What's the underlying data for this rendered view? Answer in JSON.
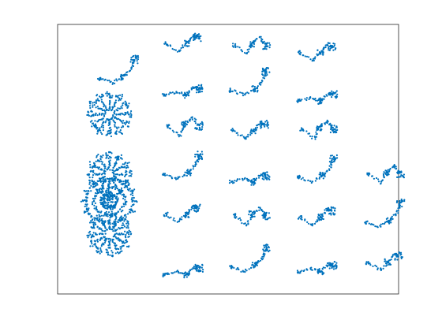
{
  "chart_data": {
    "type": "scatter",
    "title": "",
    "xlabel": "",
    "ylabel": "",
    "axis_ticks": "none",
    "grid": false,
    "legend": "none",
    "marker_color": "#0072BD",
    "frame_color": "#262626",
    "groups": [
      {
        "shape": "ring",
        "x": 1,
        "y": 6,
        "r": 0.8,
        "arms": 12
      },
      {
        "shape": "ring",
        "x": 1,
        "y": 4,
        "r": 0.8,
        "arms": 12
      },
      {
        "shape": "ring",
        "x": 1,
        "y": 2,
        "r": 0.8,
        "arms": 12
      },
      {
        "shape": "dense",
        "x": 1,
        "y": 3.1
      },
      {
        "shape": "branch",
        "x": 1.15,
        "y": 7.2
      },
      {
        "shape": "branch",
        "x": 2.4,
        "y": 8.2
      },
      {
        "shape": "branch",
        "x": 2.4,
        "y": 6.8
      },
      {
        "shape": "branch",
        "x": 2.4,
        "y": 5.4
      },
      {
        "shape": "branch",
        "x": 2.4,
        "y": 4.0
      },
      {
        "shape": "branch",
        "x": 2.4,
        "y": 2.5
      },
      {
        "shape": "branch",
        "x": 2.4,
        "y": 0.8
      },
      {
        "shape": "branch",
        "x": 3.7,
        "y": 8.1
      },
      {
        "shape": "branch",
        "x": 3.7,
        "y": 6.8
      },
      {
        "shape": "branch",
        "x": 3.7,
        "y": 5.3
      },
      {
        "shape": "branch",
        "x": 3.7,
        "y": 3.9
      },
      {
        "shape": "branch",
        "x": 3.7,
        "y": 2.4
      },
      {
        "shape": "branch",
        "x": 3.7,
        "y": 0.9
      },
      {
        "shape": "branch",
        "x": 5.0,
        "y": 7.9
      },
      {
        "shape": "branch",
        "x": 5.0,
        "y": 6.6
      },
      {
        "shape": "branch",
        "x": 5.0,
        "y": 5.3
      },
      {
        "shape": "branch",
        "x": 5.0,
        "y": 3.9
      },
      {
        "shape": "branch",
        "x": 5.0,
        "y": 2.4
      },
      {
        "shape": "branch",
        "x": 5.0,
        "y": 0.9
      },
      {
        "shape": "branch",
        "x": 6.3,
        "y": 3.8
      },
      {
        "shape": "branch",
        "x": 6.3,
        "y": 2.4
      },
      {
        "shape": "branch",
        "x": 6.3,
        "y": 0.9
      }
    ],
    "xlim": [
      0,
      6.6
    ],
    "ylim": [
      0,
      9
    ]
  }
}
